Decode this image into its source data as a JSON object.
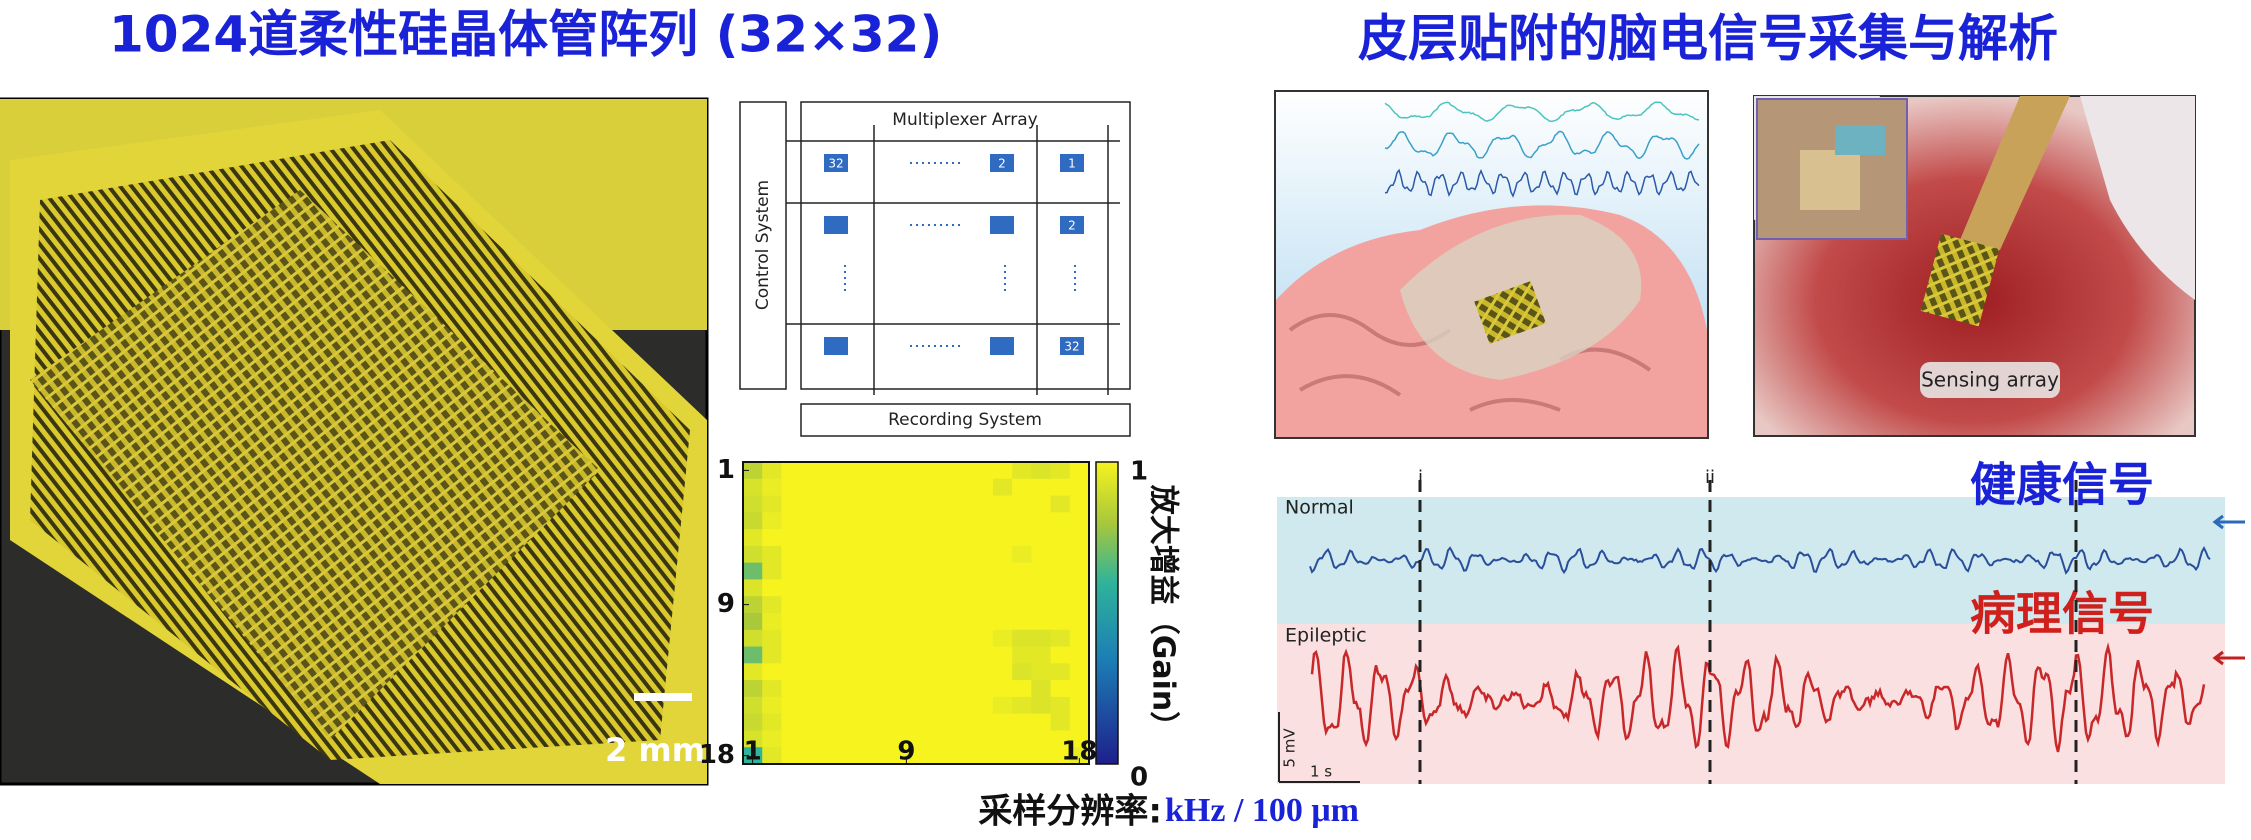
{
  "left_title": "1024道柔性硅晶体管阵列 (32×32)",
  "right_title": "皮层贴附的脑电信号采集与解析",
  "photo": {
    "scale_bar": "2 mm"
  },
  "schematic": {
    "top": "Multiplexer Array",
    "left": "Control System",
    "bottom": "Recording System",
    "cells": [
      "32",
      "2",
      "1",
      "2",
      "32"
    ]
  },
  "heatmap": {
    "values": [
      [
        0.85,
        0.95,
        1,
        1,
        1,
        1,
        1,
        1,
        1,
        1,
        1,
        1,
        1,
        1,
        0.95,
        0.93,
        0.95,
        1
      ],
      [
        0.92,
        0.97,
        1,
        1,
        1,
        1,
        1,
        1,
        1,
        1,
        1,
        1,
        1,
        0.95,
        1,
        1,
        1,
        1
      ],
      [
        0.9,
        0.95,
        1,
        1,
        1,
        1,
        1,
        1,
        1,
        1,
        1,
        1,
        1,
        1,
        1,
        1,
        0.95,
        1
      ],
      [
        0.88,
        0.97,
        1,
        1,
        1,
        1,
        1,
        1,
        1,
        1,
        1,
        1,
        1,
        1,
        1,
        1,
        1,
        1
      ],
      [
        0.95,
        1,
        1,
        1,
        1,
        1,
        1,
        1,
        1,
        1,
        1,
        1,
        1,
        1,
        1,
        1,
        1,
        1
      ],
      [
        0.9,
        0.95,
        1,
        1,
        1,
        1,
        1,
        1,
        1,
        1,
        1,
        1,
        1,
        1,
        0.97,
        1,
        1,
        1
      ],
      [
        0.7,
        0.95,
        1,
        1,
        1,
        1,
        1,
        1,
        1,
        1,
        1,
        1,
        1,
        1,
        1,
        1,
        1,
        1
      ],
      [
        0.93,
        1,
        1,
        1,
        1,
        1,
        1,
        1,
        1,
        1,
        1,
        1,
        1,
        1,
        1,
        1,
        1,
        1
      ],
      [
        0.85,
        0.95,
        1,
        1,
        1,
        1,
        1,
        1,
        1,
        1,
        1,
        1,
        1,
        1,
        1,
        1,
        1,
        1
      ],
      [
        0.8,
        0.97,
        1,
        1,
        1,
        1,
        1,
        1,
        1,
        1,
        1,
        1,
        1,
        1,
        1,
        1,
        1,
        1
      ],
      [
        0.9,
        0.95,
        1,
        1,
        1,
        1,
        1,
        1,
        1,
        1,
        1,
        1,
        1,
        0.97,
        0.93,
        0.93,
        0.95,
        1
      ],
      [
        0.7,
        0.95,
        1,
        1,
        1,
        1,
        1,
        1,
        1,
        1,
        1,
        1,
        1,
        1,
        0.95,
        0.95,
        1,
        1
      ],
      [
        0.95,
        1,
        1,
        1,
        1,
        1,
        1,
        1,
        1,
        1,
        1,
        1,
        1,
        1,
        0.93,
        0.95,
        0.95,
        1
      ],
      [
        0.85,
        0.95,
        1,
        1,
        1,
        1,
        1,
        1,
        1,
        1,
        1,
        1,
        1,
        1,
        1,
        0.93,
        1,
        1
      ],
      [
        0.9,
        0.97,
        1,
        1,
        1,
        1,
        1,
        1,
        1,
        1,
        1,
        1,
        1,
        0.97,
        0.95,
        0.93,
        0.95,
        1
      ],
      [
        0.88,
        0.95,
        1,
        1,
        1,
        1,
        1,
        1,
        1,
        1,
        1,
        1,
        1,
        1,
        1,
        1,
        0.95,
        1
      ],
      [
        0.92,
        0.97,
        1,
        1,
        1,
        1,
        1,
        1,
        1,
        1,
        1,
        1,
        1,
        1,
        1,
        1,
        1,
        1
      ],
      [
        0.6,
        0.95,
        1,
        1,
        1,
        1,
        1,
        1,
        1,
        1,
        1,
        1,
        1,
        1,
        1,
        1,
        1,
        0.97
      ]
    ],
    "row_ticks": [
      1,
      9,
      18
    ],
    "col_ticks": [
      1,
      9,
      18
    ],
    "clim": [
      0,
      1
    ],
    "colorbar_ticks": [
      0,
      1
    ],
    "colorbar_label": "放大增益（Gain）",
    "x_label_cn": "采样分辨率: ",
    "x_label_unit": "kHz / 100 μm"
  },
  "implant": {
    "label": "Sensing array"
  },
  "eeg": {
    "markers": [
      "i",
      "ii"
    ],
    "normal": "Normal",
    "epileptic": "Epileptic",
    "healthy": "健康信号",
    "pathological": "病理信号",
    "scale_v": "5 mV",
    "scale_t": "1 s"
  }
}
